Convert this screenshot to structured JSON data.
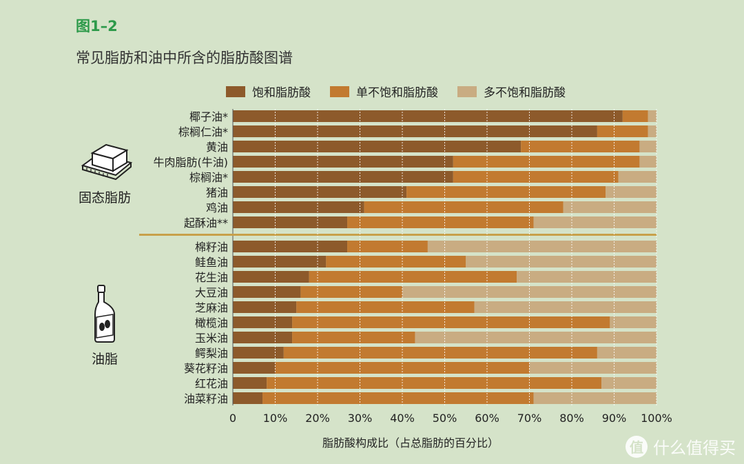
{
  "figure_label": "图1–2",
  "chart_data": {
    "type": "bar",
    "orientation": "horizontal",
    "stacked": true,
    "title": "常见脂肪和油中所含的脂肪酸图谱",
    "xlabel": "脂肪酸构成比（占总脂肪的百分比）",
    "xlim": [
      0,
      100
    ],
    "xticks": [
      "0",
      "10%",
      "20%",
      "30%",
      "40%",
      "50%",
      "60%",
      "70%",
      "80%",
      "90%",
      "100%"
    ],
    "legend_position": "top",
    "grid": true,
    "categories": [
      "椰子油*",
      "棕榈仁油*",
      "黄油",
      "牛肉脂肪(牛油)",
      "棕榈油*",
      "猪油",
      "鸡油",
      "起酥油**",
      "棉籽油",
      "鲑鱼油",
      "花生油",
      "大豆油",
      "芝麻油",
      "橄榄油",
      "玉米油",
      "鳄梨油",
      "葵花籽油",
      "红花油",
      "油菜籽油"
    ],
    "series": [
      {
        "name": "饱和脂肪酸",
        "color": "#8d5a2b",
        "values": [
          92,
          86,
          68,
          52,
          52,
          41,
          31,
          27,
          27,
          22,
          18,
          16,
          15,
          14,
          14,
          12,
          10,
          8,
          7
        ]
      },
      {
        "name": "单不饱和脂肪酸",
        "color": "#c27a30",
        "values": [
          6,
          12,
          28,
          44,
          39,
          47,
          47,
          44,
          19,
          33,
          49,
          24,
          42,
          75,
          29,
          74,
          60,
          79,
          64
        ]
      },
      {
        "name": "多不饱和脂肪酸",
        "color": "#c9ac82",
        "values": [
          2,
          2,
          4,
          4,
          9,
          12,
          22,
          29,
          54,
          45,
          33,
          60,
          43,
          11,
          57,
          14,
          30,
          13,
          29
        ]
      }
    ],
    "groups": [
      {
        "label": "固态脂肪",
        "icon": "butter-icon"
      },
      {
        "label": "油脂",
        "icon": "oil-bottle-icon"
      }
    ],
    "separator_color": "#c8a04a"
  },
  "watermark": {
    "logo": "值",
    "text": "什么值得买"
  }
}
